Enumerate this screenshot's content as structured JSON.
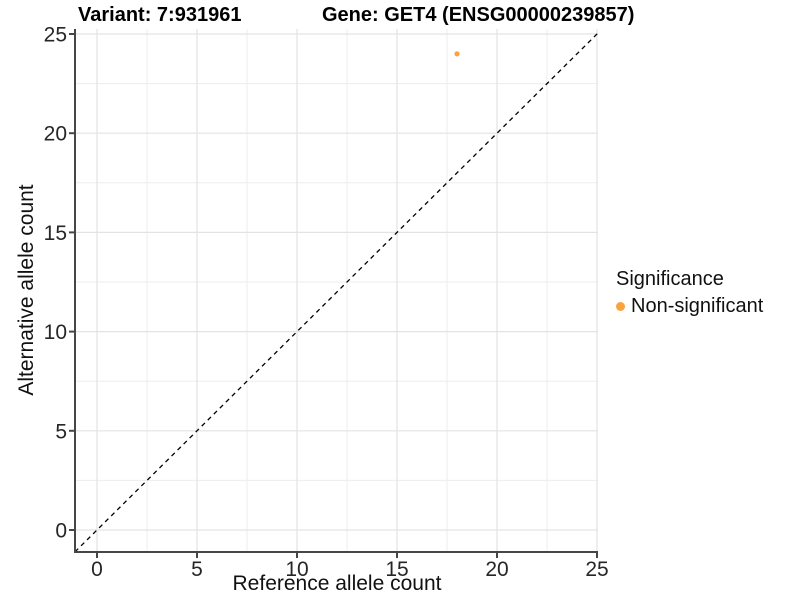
{
  "chart_data": {
    "type": "scatter",
    "titles": {
      "variant": "Variant: 7:931961",
      "gene": "Gene: GET4 (ENSG00000239857)"
    },
    "xlabel": "Reference allele count",
    "ylabel": "Alternative allele count",
    "x_ticks": [
      0,
      5,
      10,
      15,
      20,
      25
    ],
    "y_ticks": [
      0,
      5,
      10,
      15,
      20,
      25
    ],
    "x_minor_ticks": [
      2.5,
      7.5,
      12.5,
      17.5,
      22.5
    ],
    "y_minor_ticks": [
      2.5,
      7.5,
      12.5,
      17.5,
      22.5
    ],
    "xlim": [
      -1.1,
      25.05
    ],
    "ylim": [
      -1.1,
      25.05
    ],
    "grid": true,
    "identity_line": {
      "style": "dashed",
      "slope": 1,
      "intercept": 0,
      "color": "#000000"
    },
    "points": [
      {
        "x": 18,
        "y": 24,
        "series": "Non-significant"
      }
    ],
    "legend": {
      "title": "Significance",
      "position": "right",
      "entries": [
        {
          "label": "Non-significant",
          "color": "#FAA33C"
        }
      ]
    },
    "colors": {
      "point": "#FAA33C",
      "grid_major": "#e3e3e3",
      "grid_minor": "#ededed",
      "axis_line": "#464646",
      "tick_label": "#262626",
      "background": "#ffffff"
    }
  }
}
